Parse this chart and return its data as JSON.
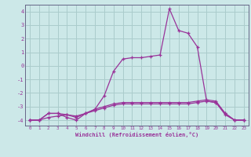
{
  "xlabel": "Windchill (Refroidissement éolien,°C)",
  "background_color": "#cce8e8",
  "grid_color": "#aacccc",
  "line_color": "#993399",
  "spine_color": "#666688",
  "x_hours": [
    0,
    1,
    2,
    3,
    4,
    5,
    6,
    7,
    8,
    9,
    10,
    11,
    12,
    13,
    14,
    15,
    16,
    17,
    18,
    19,
    20,
    21,
    22,
    23
  ],
  "temp_line": [
    -4,
    -4,
    -3.5,
    -3.5,
    -3.8,
    -4,
    -3.5,
    -3.2,
    -2.2,
    -0.4,
    0.5,
    0.6,
    0.6,
    0.7,
    0.8,
    4.2,
    2.6,
    2.4,
    1.4,
    -2.6,
    -2.7,
    -3.5,
    -4,
    -4
  ],
  "windchill_line": [
    -4,
    -4,
    -3.5,
    -3.5,
    -3.6,
    -3.8,
    -3.5,
    -3.2,
    -3.0,
    -2.8,
    -2.7,
    -2.7,
    -2.7,
    -2.7,
    -2.7,
    -2.7,
    -2.7,
    -2.7,
    -2.6,
    -2.5,
    -2.6,
    -3.5,
    -4,
    -4
  ],
  "wc2_line": [
    -4,
    -4,
    -3.8,
    -3.7,
    -3.6,
    -3.7,
    -3.5,
    -3.3,
    -3.1,
    -2.9,
    -2.8,
    -2.8,
    -2.8,
    -2.8,
    -2.8,
    -2.8,
    -2.8,
    -2.8,
    -2.7,
    -2.6,
    -2.7,
    -3.6,
    -4,
    -4
  ],
  "ylim": [
    -4.4,
    4.5
  ],
  "yticks": [
    -4,
    -3,
    -2,
    -1,
    0,
    1,
    2,
    3,
    4
  ]
}
